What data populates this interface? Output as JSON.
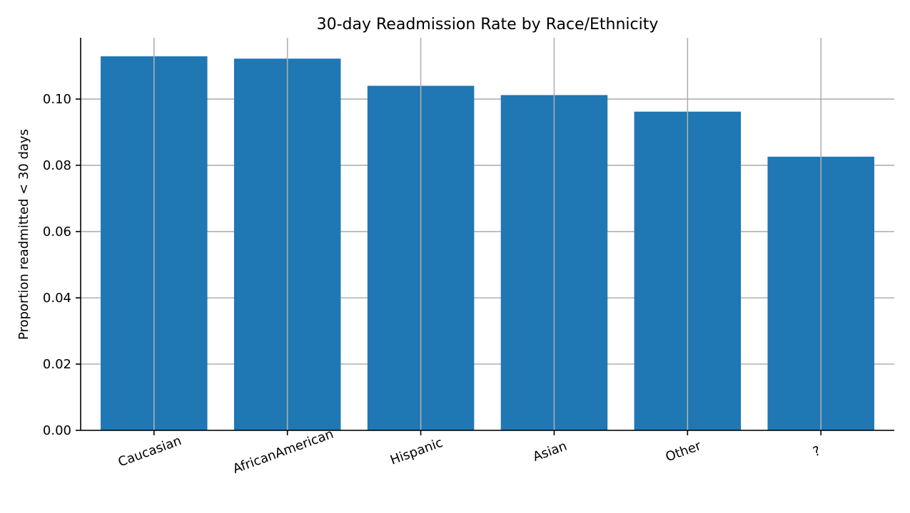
{
  "chart_data": {
    "type": "bar",
    "title": "30-day Readmission Rate by Race/Ethnicity",
    "xlabel": "",
    "ylabel": "Proportion readmitted < 30 days",
    "categories": [
      "Caucasian",
      "AfricanAmerican",
      "Hispanic",
      "Asian",
      "Other",
      "?"
    ],
    "values": [
      0.1129,
      0.1122,
      0.104,
      0.1012,
      0.0962,
      0.0826
    ],
    "ylim": [
      0,
      0.1185
    ],
    "yticks": [
      0.0,
      0.02,
      0.04,
      0.06,
      0.08,
      0.1
    ],
    "ytick_labels": [
      "0.00",
      "0.02",
      "0.04",
      "0.06",
      "0.08",
      "0.10"
    ],
    "grid": true,
    "bar_color": "#1f77b4",
    "grid_color": "#b0b0b0",
    "legend": null
  }
}
